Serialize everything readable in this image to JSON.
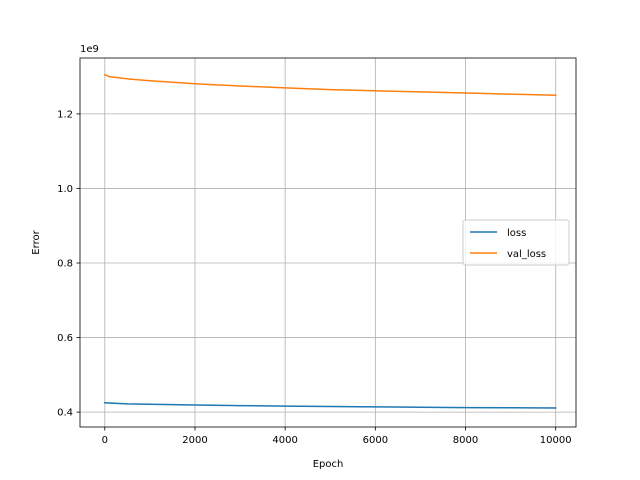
{
  "chart_data": {
    "type": "line",
    "title": "",
    "xlabel": "Epoch",
    "ylabel": "Error",
    "y_offset_label": "1e9",
    "y_scale": 1000000000,
    "xlim": [
      -550,
      10450
    ],
    "ylim": [
      360000000,
      1350000000
    ],
    "x_ticks": [
      0,
      2000,
      4000,
      6000,
      8000,
      10000
    ],
    "x_tick_labels": [
      "0",
      "2000",
      "4000",
      "6000",
      "8000",
      "10000"
    ],
    "y_ticks": [
      400000000,
      600000000,
      800000000,
      1000000000,
      1200000000
    ],
    "y_tick_labels": [
      "0.4",
      "0.6",
      "0.8",
      "1.0",
      "1.2"
    ],
    "grid": true,
    "legend_position": "center-right",
    "series": [
      {
        "name": "loss",
        "color": "#1f77b4",
        "x": [
          0,
          500,
          1000,
          2000,
          3000,
          4000,
          5000,
          6000,
          7000,
          8000,
          9000,
          10000
        ],
        "y": [
          425000000,
          422000000,
          421000000,
          419000000,
          417500000,
          416000000,
          415000000,
          414000000,
          413000000,
          412000000,
          411500000,
          411000000
        ]
      },
      {
        "name": "val_loss",
        "color": "#ff7f0e",
        "x": [
          0,
          100,
          300,
          600,
          1000,
          2000,
          3000,
          4000,
          5000,
          6000,
          7000,
          8000,
          9000,
          10000
        ],
        "y": [
          1305000000,
          1300000000,
          1297000000,
          1293000000,
          1289000000,
          1281000000,
          1275000000,
          1270000000,
          1265000000,
          1262000000,
          1259000000,
          1256000000,
          1253000000,
          1250000000
        ]
      }
    ]
  }
}
